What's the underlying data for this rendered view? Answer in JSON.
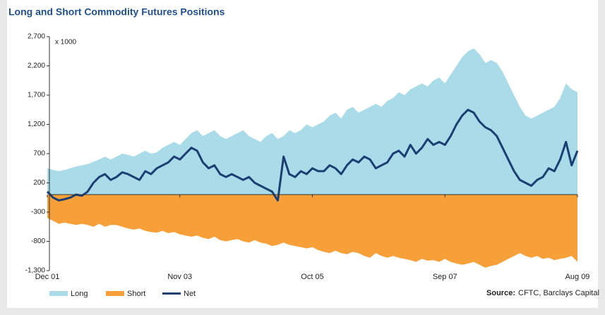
{
  "chart_data": {
    "type": "area",
    "title": "Long and Short Commodity Futures Positions",
    "y_unit": "x 1000",
    "source_label": "Source:",
    "source": "CFTC, Barclays Capital",
    "categories": [
      "Dec 01",
      null,
      null,
      null,
      null,
      null,
      null,
      null,
      null,
      null,
      null,
      null,
      null,
      null,
      null,
      null,
      null,
      null,
      null,
      null,
      null,
      null,
      null,
      "Nov 03",
      null,
      null,
      null,
      null,
      null,
      null,
      null,
      null,
      null,
      null,
      null,
      null,
      null,
      null,
      null,
      null,
      null,
      null,
      null,
      null,
      null,
      null,
      "Oct 05",
      null,
      null,
      null,
      null,
      null,
      null,
      null,
      null,
      null,
      null,
      null,
      null,
      null,
      null,
      null,
      null,
      null,
      null,
      null,
      null,
      null,
      null,
      "Sep 07",
      null,
      null,
      null,
      null,
      null,
      null,
      null,
      null,
      null,
      null,
      null,
      null,
      null,
      null,
      null,
      null,
      null,
      null,
      null,
      null,
      null,
      null,
      "Aug 09"
    ],
    "series": [
      {
        "name": "Long",
        "color": "#a9dce8",
        "kind": "area",
        "values": [
          450,
          420,
          400,
          420,
          450,
          480,
          500,
          520,
          560,
          600,
          650,
          600,
          650,
          700,
          680,
          650,
          700,
          750,
          700,
          720,
          800,
          850,
          900,
          850,
          950,
          1050,
          1100,
          1000,
          1050,
          1100,
          1000,
          950,
          1000,
          1050,
          1100,
          1000,
          950,
          900,
          1000,
          1050,
          950,
          1000,
          1100,
          1050,
          1100,
          1200,
          1150,
          1200,
          1250,
          1350,
          1400,
          1300,
          1450,
          1500,
          1400,
          1450,
          1500,
          1550,
          1500,
          1600,
          1650,
          1750,
          1700,
          1800,
          1850,
          1900,
          1850,
          1950,
          2000,
          1900,
          2050,
          2200,
          2350,
          2450,
          2500,
          2400,
          2250,
          2300,
          2250,
          2100,
          1900,
          1700,
          1500,
          1350,
          1300,
          1350,
          1400,
          1450,
          1500,
          1650,
          1900,
          1800,
          1750
        ]
      },
      {
        "name": "Short",
        "color": "#f7a03a",
        "kind": "area",
        "values": [
          -400,
          -450,
          -500,
          -480,
          -500,
          -520,
          -500,
          -520,
          -550,
          -500,
          -550,
          -520,
          -520,
          -550,
          -580,
          -600,
          -580,
          -620,
          -640,
          -650,
          -620,
          -660,
          -640,
          -680,
          -700,
          -720,
          -700,
          -740,
          -760,
          -720,
          -780,
          -800,
          -780,
          -760,
          -800,
          -820,
          -780,
          -820,
          -840,
          -880,
          -860,
          -820,
          -860,
          -880,
          -900,
          -920,
          -900,
          -950,
          -980,
          -1000,
          -960,
          -1000,
          -1020,
          -980,
          -1000,
          -1050,
          -1080,
          -1000,
          -1050,
          -1080,
          -1050,
          -1080,
          -1100,
          -1120,
          -1150,
          -1100,
          -1130,
          -1120,
          -1150,
          -1100,
          -1150,
          -1180,
          -1200,
          -1180,
          -1150,
          -1200,
          -1250,
          -1220,
          -1200,
          -1150,
          -1100,
          -1050,
          -1000,
          -1050,
          -1080,
          -1050,
          -1100,
          -1080,
          -1120,
          -1100,
          -1080,
          -1050,
          -1150
        ]
      },
      {
        "name": "Net",
        "color": "#1b3f73",
        "kind": "line",
        "values": [
          50,
          -50,
          -100,
          -80,
          -50,
          0,
          -20,
          50,
          200,
          300,
          350,
          250,
          300,
          380,
          350,
          300,
          250,
          400,
          350,
          450,
          500,
          550,
          650,
          600,
          700,
          800,
          750,
          550,
          450,
          500,
          350,
          300,
          350,
          300,
          250,
          300,
          200,
          150,
          100,
          50,
          -100,
          650,
          350,
          300,
          400,
          350,
          450,
          400,
          400,
          500,
          450,
          350,
          500,
          600,
          550,
          650,
          600,
          450,
          500,
          550,
          700,
          750,
          650,
          850,
          700,
          800,
          950,
          850,
          900,
          850,
          1000,
          1200,
          1350,
          1450,
          1400,
          1250,
          1150,
          1100,
          1000,
          800,
          600,
          400,
          250,
          200,
          150,
          250,
          300,
          450,
          400,
          600,
          900,
          500,
          750
        ]
      }
    ],
    "ylim": [
      -1300,
      2700
    ],
    "yticks": [
      {
        "value": -1300,
        "label": "-1,300"
      },
      -800,
      -300,
      200,
      700,
      {
        "value": 1200,
        "label": "1,200"
      },
      {
        "value": 1700,
        "label": "1,700"
      },
      {
        "value": 2200,
        "label": "2,200"
      },
      {
        "value": 2700,
        "label": "2,700"
      }
    ]
  }
}
